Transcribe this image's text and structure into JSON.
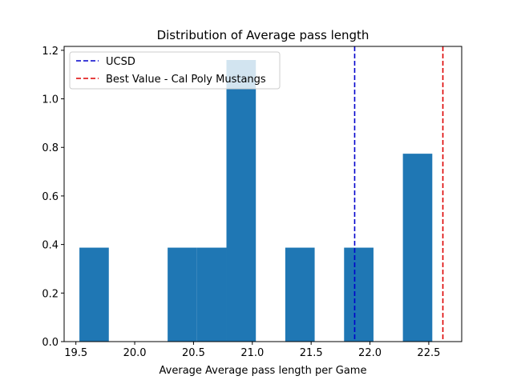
{
  "chart_data": {
    "type": "bar",
    "title": "Distribution of Average pass length",
    "xlabel": "Average Average pass length per Game",
    "ylabel": "",
    "xlim": [
      19.4,
      22.78
    ],
    "ylim": [
      0,
      1.216
    ],
    "xticks": [
      19.5,
      20.0,
      20.5,
      21.0,
      21.5,
      22.0,
      22.5
    ],
    "xtick_labels": [
      "19.5",
      "20.0",
      "20.5",
      "21.0",
      "21.5",
      "22.0",
      "22.5"
    ],
    "yticks": [
      0.0,
      0.2,
      0.4,
      0.6,
      0.8,
      1.0,
      1.2
    ],
    "ytick_labels": [
      "0.0",
      "0.2",
      "0.4",
      "0.6",
      "0.8",
      "1.0",
      "1.2"
    ],
    "bin_edges": [
      19.53,
      19.78,
      20.03,
      20.28,
      20.53,
      20.78,
      21.03,
      21.28,
      21.53,
      21.78,
      22.03,
      22.28,
      22.53
    ],
    "values": [
      0.387,
      0.0,
      0.0,
      0.387,
      0.387,
      1.16,
      0.0,
      0.387,
      0.0,
      0.387,
      0.0,
      0.774
    ],
    "bar_color": "#1f77b4",
    "vlines": [
      {
        "name": "UCSD",
        "x": 21.87,
        "color": "#0000cc",
        "style": "dashed"
      },
      {
        "name": "Best Value - Cal Poly Mustangs",
        "x": 22.62,
        "color": "#dd0000",
        "style": "dashed"
      }
    ],
    "legend_position": "top-left",
    "grid": false
  }
}
